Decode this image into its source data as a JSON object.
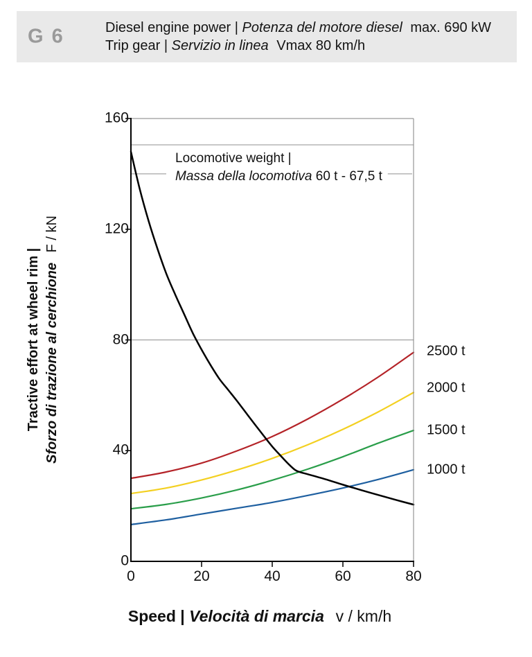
{
  "header": {
    "code": "G 6",
    "line1": {
      "en": "Diesel engine power |",
      "it": "Potenza del motore diesel",
      "suffix": "max. 690 kW"
    },
    "line2": {
      "en": "Trip gear |",
      "it": "Servizio in linea",
      "suffix": "Vmax 80 km/h"
    }
  },
  "chart_data": {
    "type": "line",
    "title": "",
    "xlabel": {
      "en": "Speed |",
      "it": "Velocità di marcia",
      "unit": "v / km/h"
    },
    "ylabel": {
      "en": "Tractive effort at wheel rim |",
      "it": "Sforzo di trazione al cerchione",
      "unit": "F / kN"
    },
    "xlim": [
      0,
      80
    ],
    "ylim": [
      0,
      160
    ],
    "x_ticks": [
      0,
      20,
      40,
      60,
      80
    ],
    "y_ticks": [
      160,
      120,
      80,
      40,
      0
    ],
    "gridlines_y": [
      80
    ],
    "legend_position": "right of curve ends",
    "annotation": {
      "en": "Locomotive weight |",
      "it": "Massa della locomotiva",
      "value": "60 t - 67,5 t"
    },
    "reference_lines": [
      {
        "F": 150.5,
        "segments_v": [
          [
            0,
            80
          ]
        ]
      },
      {
        "F": 140.0,
        "segments_v": [
          [
            0,
            10
          ],
          [
            72.7,
            79.6
          ]
        ]
      }
    ],
    "series": [
      {
        "name": "tractive-effort-limit",
        "label": "",
        "color": "#000000",
        "width": 2.5,
        "points": [
          [
            0,
            148
          ],
          [
            2.5,
            134.5
          ],
          [
            5,
            123
          ],
          [
            7.5,
            113
          ],
          [
            10,
            104
          ],
          [
            12.5,
            96.5
          ],
          [
            15,
            89.5
          ],
          [
            17.5,
            82.5
          ],
          [
            20,
            76.5
          ],
          [
            22.5,
            71
          ],
          [
            25,
            66
          ],
          [
            27.5,
            62
          ],
          [
            30,
            58
          ],
          [
            32.5,
            53.8
          ],
          [
            35,
            49.6
          ],
          [
            37.5,
            45.5
          ],
          [
            40,
            41.5
          ],
          [
            42.5,
            38
          ],
          [
            44.5,
            35.3
          ],
          [
            46.5,
            33
          ],
          [
            48,
            32.2
          ],
          [
            50,
            31.5
          ],
          [
            55,
            29.7
          ],
          [
            60,
            27.7
          ],
          [
            65,
            25.8
          ],
          [
            70,
            24
          ],
          [
            75,
            22.2
          ],
          [
            80,
            20.5
          ]
        ]
      },
      {
        "name": "train-load-2500t",
        "label": "2500 t",
        "color": "#b42328",
        "width": 2.2,
        "points": [
          [
            0,
            30
          ],
          [
            10,
            32.3
          ],
          [
            20,
            35.5
          ],
          [
            30,
            39.9
          ],
          [
            40,
            45.1
          ],
          [
            50,
            51.4
          ],
          [
            60,
            58.6
          ],
          [
            70,
            66.6
          ],
          [
            80,
            75.5
          ]
        ]
      },
      {
        "name": "train-load-2000t",
        "label": "2000 t",
        "color": "#f3d021",
        "width": 2.2,
        "points": [
          [
            0,
            24.5
          ],
          [
            10,
            26.5
          ],
          [
            20,
            29.4
          ],
          [
            30,
            33
          ],
          [
            40,
            37.2
          ],
          [
            50,
            42.1
          ],
          [
            60,
            47.7
          ],
          [
            70,
            54
          ],
          [
            80,
            61
          ]
        ]
      },
      {
        "name": "train-load-1500t",
        "label": "1500 t",
        "color": "#2a9e4a",
        "width": 2.2,
        "points": [
          [
            0,
            19
          ],
          [
            10,
            20.6
          ],
          [
            20,
            22.9
          ],
          [
            30,
            25.8
          ],
          [
            40,
            29.3
          ],
          [
            50,
            33.3
          ],
          [
            60,
            37.8
          ],
          [
            70,
            42.7
          ],
          [
            80,
            47.3
          ]
        ]
      },
      {
        "name": "train-load-1000t",
        "label": "1000 t",
        "color": "#1e5fa0",
        "width": 2.2,
        "points": [
          [
            0,
            13.3
          ],
          [
            10,
            15
          ],
          [
            20,
            17.1
          ],
          [
            30,
            19.2
          ],
          [
            40,
            21.3
          ],
          [
            50,
            23.8
          ],
          [
            60,
            26.5
          ],
          [
            70,
            29.6
          ],
          [
            80,
            33.1
          ]
        ]
      }
    ]
  }
}
